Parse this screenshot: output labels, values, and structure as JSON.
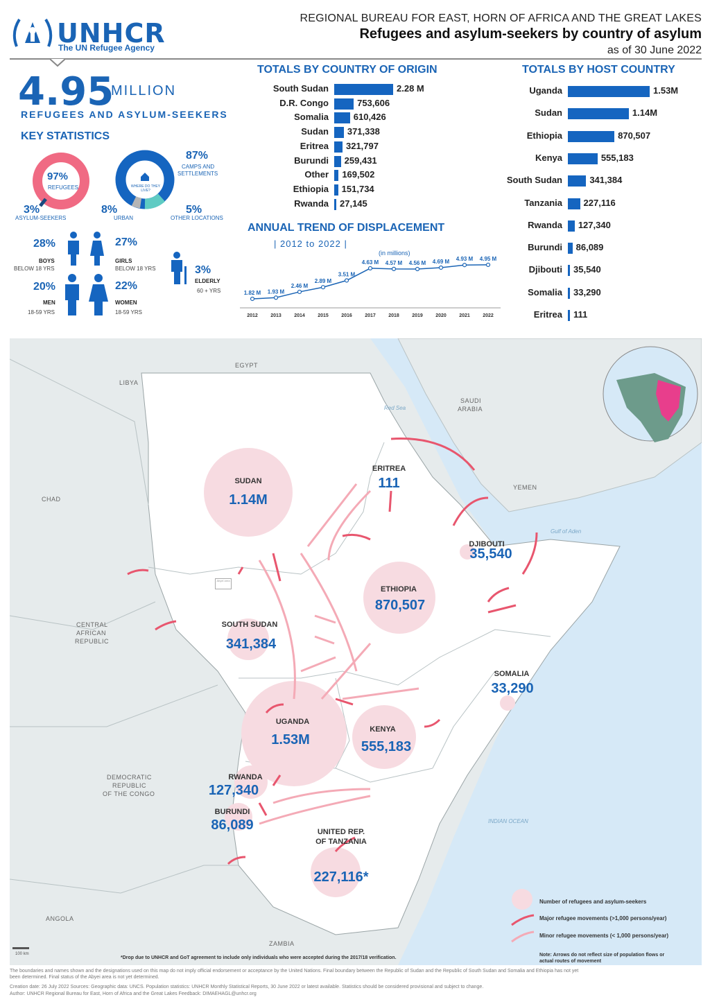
{
  "header": {
    "org": "UNHCR",
    "org_sub": "The UN Refugee Agency",
    "region": "REGIONAL BUREAU FOR EAST, HORN OF AFRICA AND THE GREAT LAKES",
    "title": "Refugees and asylum-seekers by country of asylum",
    "date": "as of 30 June 2022"
  },
  "summary": {
    "total": "4.95",
    "unit": "MILLION",
    "label": "REFUGEES AND ASYLUM-SEEKERS",
    "key_stats_title": "KEY STATISTICS"
  },
  "key_stats": {
    "refugees_pct": "97%",
    "refugees_lbl": "REFUGEES",
    "asylum_pct": "3%",
    "asylum_lbl": "ASYLUM-SEEKERS",
    "camps_pct": "87%",
    "camps_lbl1": "CAMPS AND",
    "camps_lbl2": "SETTLEMENTS",
    "where_lbl1": "WHERE DO THEY",
    "where_lbl2": "LIVE?",
    "urban_pct": "8%",
    "urban_lbl": "URBAN",
    "other_pct": "5%",
    "other_lbl": "OTHER LOCATIONS",
    "boys_pct": "28%",
    "boys_lbl": "BOYS",
    "boys_sub": "BELOW 18 YRS",
    "girls_pct": "27%",
    "girls_lbl": "GIRLS",
    "girls_sub": "BELOW 18 YRS",
    "men_pct": "20%",
    "men_lbl": "MEN",
    "men_sub": "18-59 YRS",
    "women_pct": "22%",
    "women_lbl": "WOMEN",
    "women_sub": "18-59 YRS",
    "elderly_pct": "3%",
    "elderly_lbl": "ELDERLY",
    "elderly_sub": "60 + YRS"
  },
  "chart_data": [
    {
      "type": "bar",
      "title": "TOTALS BY COUNTRY OF ORIGIN",
      "categories": [
        "South Sudan",
        "D.R. Congo",
        "Somalia",
        "Sudan",
        "Eritrea",
        "Burundi",
        "Other",
        "Ethiopia",
        "Rwanda"
      ],
      "values": [
        2280000,
        753606,
        610426,
        371338,
        321797,
        259431,
        169502,
        151734,
        27145
      ],
      "labels": [
        "2.28 M",
        "753,606",
        "610,426",
        "371,338",
        "321,797",
        "259,431",
        "169,502",
        "151,734",
        "27,145"
      ]
    },
    {
      "type": "bar",
      "title": "TOTALS BY HOST COUNTRY",
      "categories": [
        "Uganda",
        "Sudan",
        "Ethiopia",
        "Kenya",
        "South Sudan",
        "Tanzania",
        "Rwanda",
        "Burundi",
        "Djibouti",
        "Somalia",
        "Eritrea"
      ],
      "values": [
        1530000,
        1140000,
        870507,
        555183,
        341384,
        227116,
        127340,
        86089,
        35540,
        33290,
        111
      ],
      "labels": [
        "1.53M",
        "1.14M",
        "870,507",
        "555,183",
        "341,384",
        "227,116",
        "127,340",
        "86,089",
        "35,540",
        "33,290",
        "111"
      ]
    },
    {
      "type": "line",
      "title": "ANNUAL TREND OF DISPLACEMENT",
      "subtitle": "| 2012 to 2022 |",
      "unit_note": "(in millions)",
      "x": [
        "2012",
        "2013",
        "2014",
        "2015",
        "2016",
        "2017",
        "2018",
        "2019",
        "2020",
        "2021",
        "2022"
      ],
      "values": [
        1.82,
        1.93,
        2.46,
        2.89,
        3.51,
        4.63,
        4.57,
        4.56,
        4.69,
        4.93,
        4.95
      ],
      "labels": [
        "1.82 M",
        "1.93 M",
        "2.46 M",
        "2.89 M",
        "3.51 M",
        "4.63 M",
        "4.57 M",
        "4.56 M",
        "4.69 M",
        "4.93 M",
        "4.95 M"
      ]
    }
  ],
  "map": {
    "neighbors": [
      "EGYPT",
      "LIBYA",
      "CHAD",
      "SAUDI",
      "ARABIA",
      "YEMEN",
      "CENTRAL",
      "AFRICAN",
      "REPUBLIC",
      "DEMOCRATIC",
      "REPUBLIC",
      "OF THE CONGO",
      "ANGOLA",
      "ZAMBIA"
    ],
    "water": [
      "Red Sea",
      "Gulf of Aden",
      "INDIAN OCEAN"
    ],
    "abyei": "Abyei area",
    "hosts": [
      {
        "name": "SUDAN",
        "value": "1.14M"
      },
      {
        "name": "ERITREA",
        "value": "111"
      },
      {
        "name": "DJIBOUTI",
        "value": "35,540"
      },
      {
        "name": "ETHIOPIA",
        "value": "870,507"
      },
      {
        "name": "SOUTH SUDAN",
        "value": "341,384"
      },
      {
        "name": "SOMALIA",
        "value": "33,290"
      },
      {
        "name": "UGANDA",
        "value": "1.53M"
      },
      {
        "name": "KENYA",
        "value": "555,183"
      },
      {
        "name": "RWANDA",
        "value": "127,340"
      },
      {
        "name": "BURUNDI",
        "value": "86,089"
      },
      {
        "name": "UNITED REP.",
        "name2": "OF TANZANIA",
        "value": "227,116*"
      }
    ],
    "legend": {
      "circle": "Number of refugees and asylum-seekers",
      "major": "Major refugee movements (>1,000 persons/year)",
      "minor": "Minor refugee movements (< 1,000 persons/year)",
      "note1": "Note: Arrows do not reflect size of population flows or",
      "note2": "actual routes of movement"
    },
    "scale": "100 km",
    "drop_note": "*Drop due to UNHCR and GoT agreement to include only individuals who were accepted during the 2017/18 verification."
  },
  "footer": {
    "disclaimer1": "The boundaries and names shown and the designations used on this map do not imply official endorsement or acceptance by the United Nations. Final boundary between the Republic of Sudan and the Republic of South Sudan and Somalia and Ethiopia has not yet",
    "disclaimer2": "been determined. Final status of the Abyei area is not yet determined.",
    "creation": "Creation date: 26 July 2022    Sources: Geographic data: UNCS. Population statistics: UNHCR Monthly Statistical Reports, 30 June 2022 or latest available. Statistics should be considered provisional and subject to change.",
    "author": "Author: UNHCR Regional Bureau for East, Horn of Africa and the Great Lakes     Feedback: DIMAEHAGL@unhcr.org"
  },
  "colors": {
    "accent": "#1a64b5",
    "bar": "#1565c0",
    "pink": "#f05a78",
    "circle": "#f4d3da"
  }
}
